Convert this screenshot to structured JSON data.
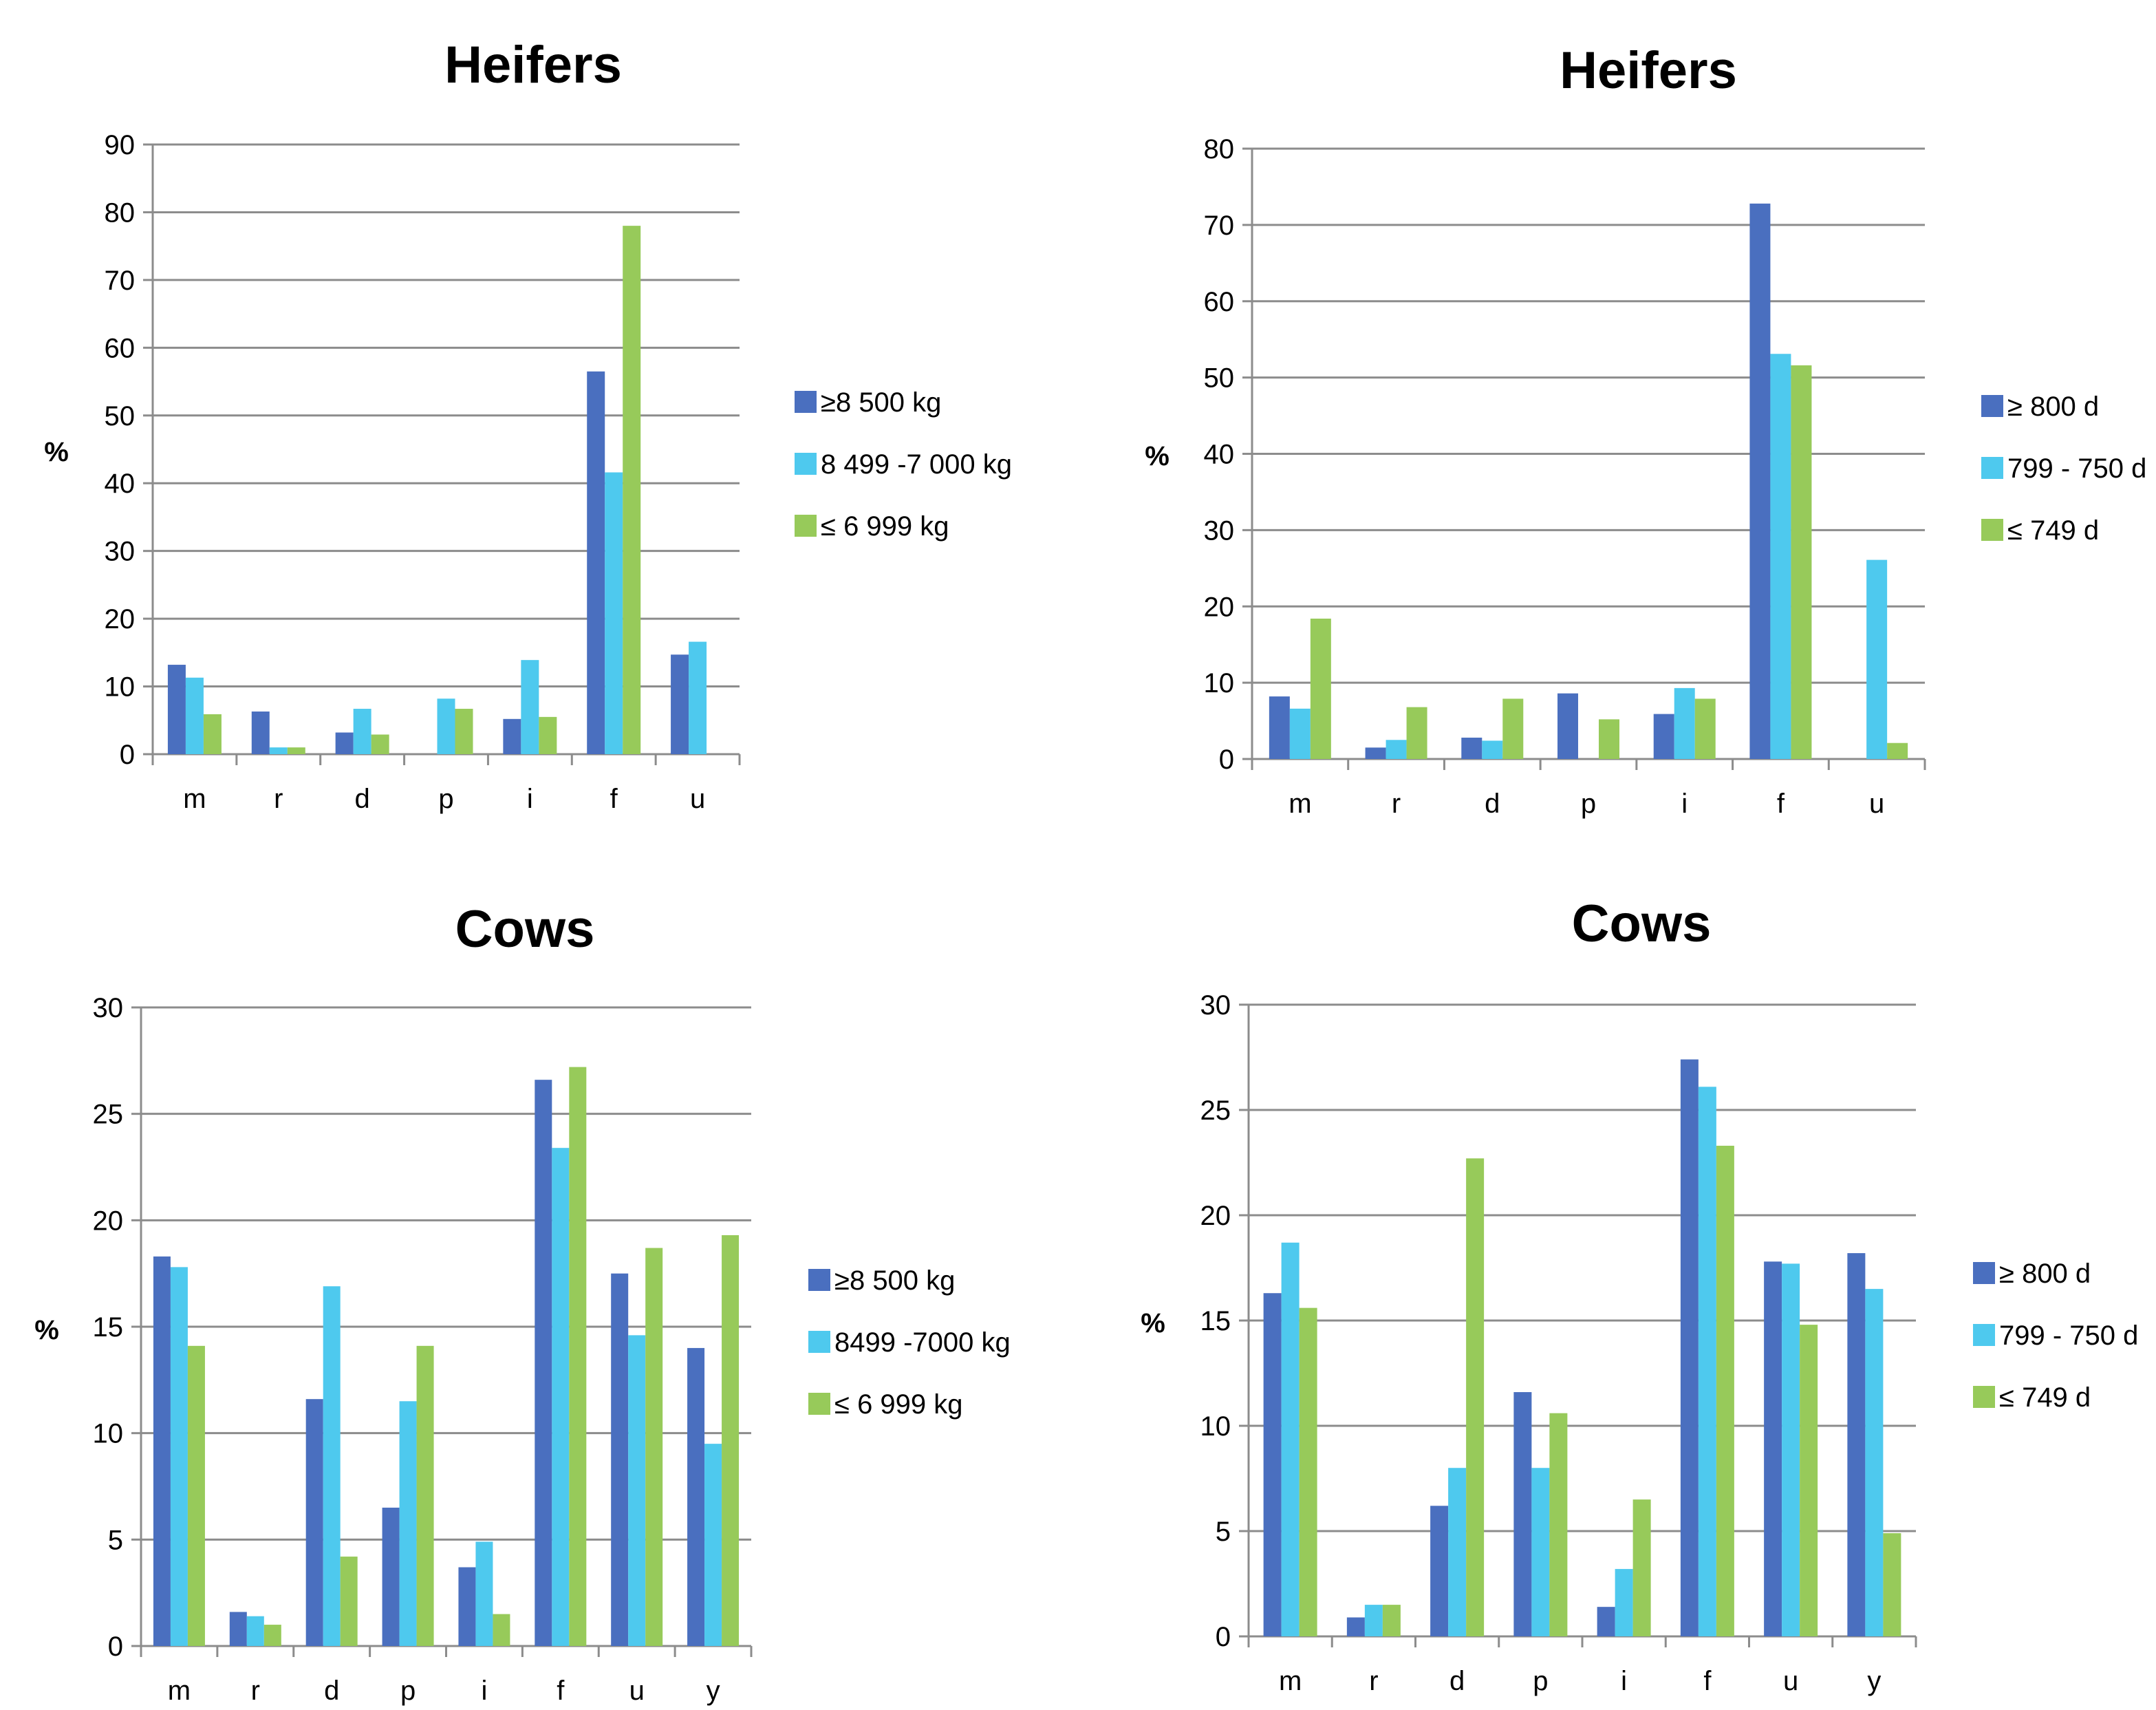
{
  "colors": {
    "s1": "#4a6fbf",
    "s2": "#4ec9ee",
    "s3": "#97ca5a",
    "grid": "#8c8c8c"
  },
  "chart_data": [
    {
      "type": "bar",
      "title": "Heifers",
      "ylabel": "%",
      "ylim": [
        0,
        90
      ],
      "yticks": [
        0,
        10,
        20,
        30,
        40,
        50,
        60,
        70,
        80,
        90
      ],
      "categories": [
        "m",
        "r",
        "d",
        "p",
        "i",
        "f",
        "u"
      ],
      "legend_position": "right",
      "series": [
        {
          "name": "≥8 500 kg",
          "values": [
            13.2,
            6.3,
            3.2,
            0.0,
            5.2,
            56.5,
            14.7
          ]
        },
        {
          "name": "8 499 -7 000 kg",
          "values": [
            11.3,
            1.0,
            6.7,
            8.2,
            13.9,
            41.6,
            16.6
          ]
        },
        {
          "name": "≤ 6 999 kg",
          "values": [
            5.9,
            1.0,
            2.9,
            6.7,
            5.5,
            78.0,
            0.0
          ]
        }
      ]
    },
    {
      "type": "bar",
      "title": "Heifers",
      "ylabel": "%",
      "ylim": [
        0,
        80
      ],
      "yticks": [
        0,
        10,
        20,
        30,
        40,
        50,
        60,
        70,
        80
      ],
      "categories": [
        "m",
        "r",
        "d",
        "p",
        "i",
        "f",
        "u"
      ],
      "legend_position": "right",
      "series": [
        {
          "name": "≥ 800 d",
          "values": [
            8.2,
            1.5,
            2.8,
            8.6,
            5.9,
            72.8,
            0.0
          ]
        },
        {
          "name": "799 - 750 d",
          "values": [
            6.6,
            2.5,
            2.4,
            0.0,
            9.3,
            53.1,
            26.1
          ]
        },
        {
          "name": "≤ 749 d",
          "values": [
            18.4,
            6.8,
            7.9,
            5.2,
            7.9,
            51.6,
            2.1
          ]
        }
      ]
    },
    {
      "type": "bar",
      "title": "Cows",
      "ylabel": "%",
      "ylim": [
        0,
        30
      ],
      "yticks": [
        0,
        5,
        10,
        15,
        20,
        25,
        30
      ],
      "categories": [
        "m",
        "r",
        "d",
        "p",
        "i",
        "f",
        "u",
        "y"
      ],
      "legend_position": "right",
      "series": [
        {
          "name": "≥8 500 kg",
          "values": [
            18.3,
            1.6,
            11.6,
            6.5,
            3.7,
            26.6,
            17.5,
            14.0
          ]
        },
        {
          "name": "8499 -7000 kg",
          "values": [
            17.8,
            1.4,
            16.9,
            11.5,
            4.9,
            23.4,
            14.6,
            9.5
          ]
        },
        {
          "name": "≤ 6 999 kg",
          "values": [
            14.1,
            1.0,
            4.2,
            14.1,
            1.5,
            27.2,
            18.7,
            19.3
          ]
        }
      ]
    },
    {
      "type": "bar",
      "title": "Cows",
      "ylabel": "%",
      "ylim": [
        0,
        30
      ],
      "yticks": [
        0,
        5,
        10,
        15,
        20,
        25,
        30
      ],
      "categories": [
        "m",
        "r",
        "d",
        "p",
        "i",
        "f",
        "u",
        "y"
      ],
      "legend_position": "right",
      "series": [
        {
          "name": "≥ 800 d",
          "values": [
            16.3,
            0.9,
            6.2,
            11.6,
            1.4,
            27.4,
            17.8,
            18.2
          ]
        },
        {
          "name": "799 - 750 d",
          "values": [
            18.7,
            1.5,
            8.0,
            8.0,
            3.2,
            26.1,
            17.7,
            16.5
          ]
        },
        {
          "name": "≤ 749 d",
          "values": [
            15.6,
            1.5,
            22.7,
            10.6,
            6.5,
            23.3,
            14.8,
            4.9
          ]
        }
      ]
    }
  ]
}
